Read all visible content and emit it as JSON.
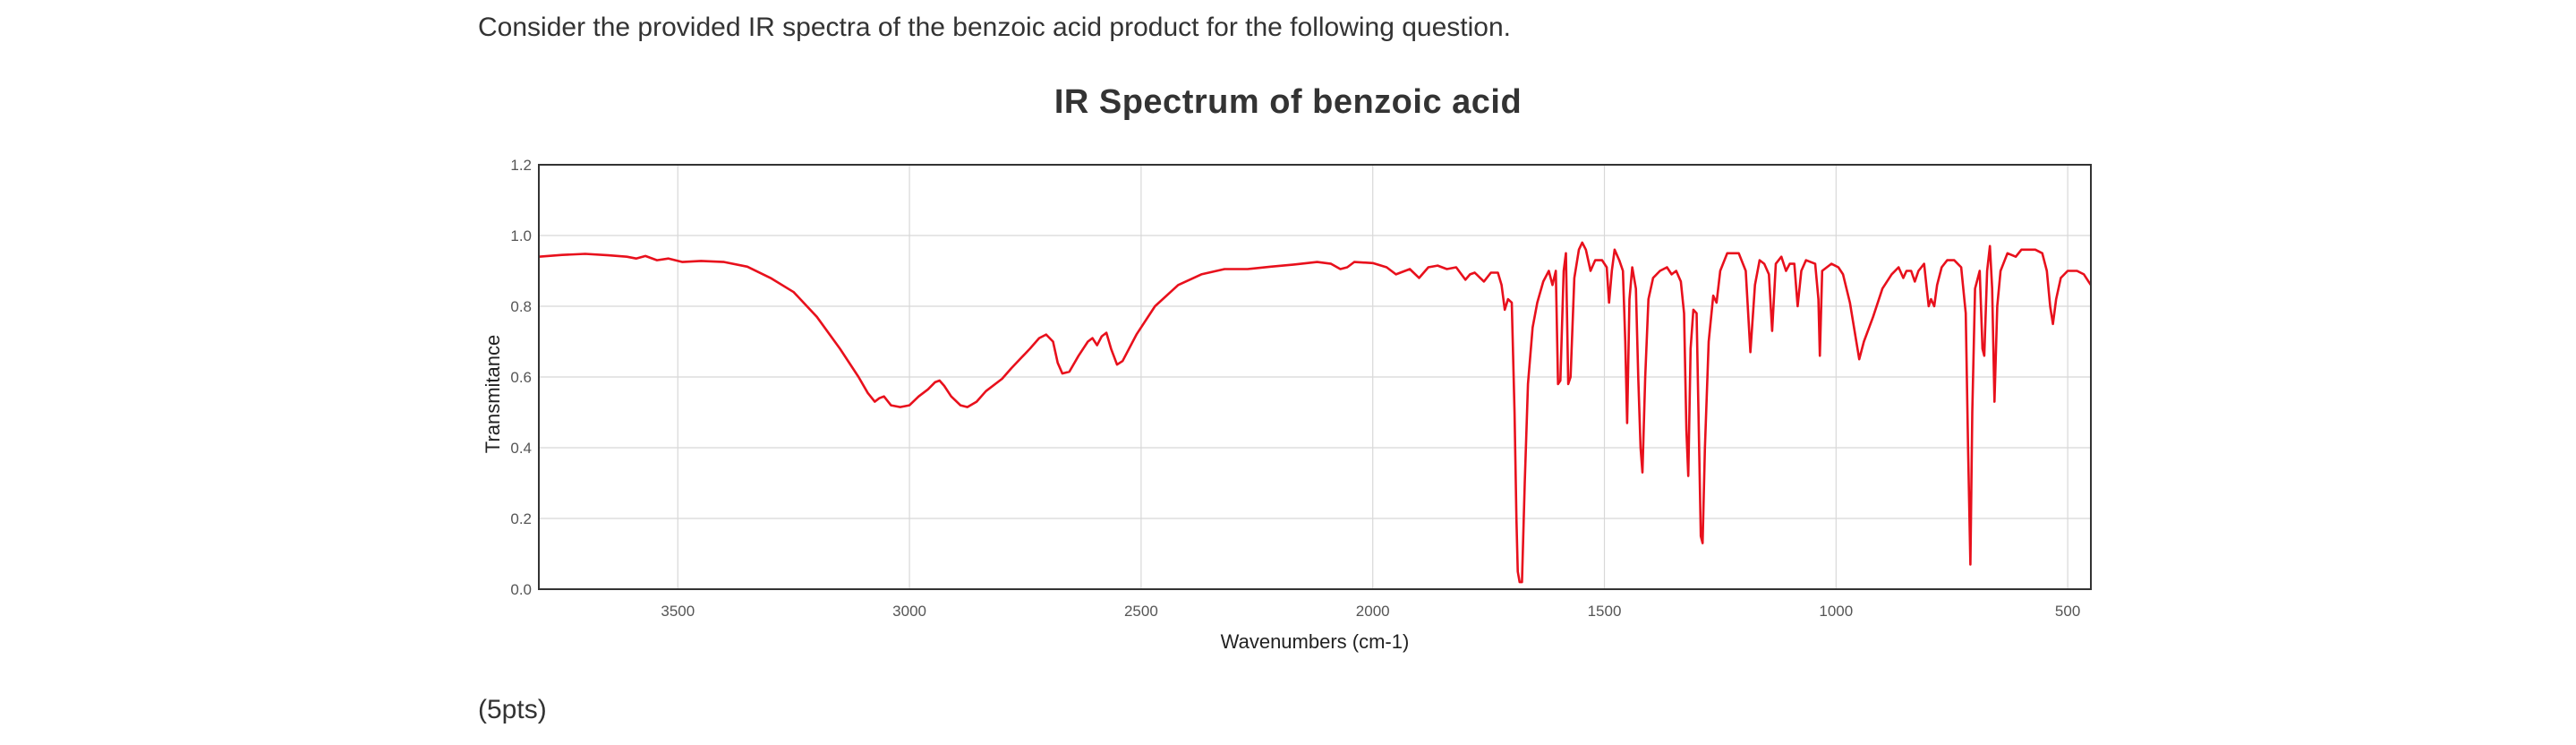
{
  "question": {
    "prompt": "Consider the provided IR spectra of the benzoic acid product for the following question.",
    "points": "(5pts)"
  },
  "colors": {
    "series": "#e8101c",
    "grid": "#d8d8d8",
    "frame": "#333333"
  },
  "chart_data": {
    "type": "line",
    "title": "IR Spectrum of benzoic acid",
    "xlabel": "Wavenumbers (cm-1)",
    "ylabel": "Transmitance",
    "xlim": [
      3800,
      450
    ],
    "x_reversed": true,
    "ylim": [
      0,
      1.2
    ],
    "x_ticks": [
      3500,
      3000,
      2500,
      2000,
      1500,
      1000,
      500
    ],
    "y_ticks": [
      "0.0",
      "0.2",
      "0.4",
      "0.6",
      "0.8",
      "1.0",
      "1.2"
    ],
    "grid": true,
    "series": [
      {
        "color": "#e8101c",
        "points": [
          [
            3800,
            0.94
          ],
          [
            3750,
            0.945
          ],
          [
            3700,
            0.948
          ],
          [
            3650,
            0.944
          ],
          [
            3610,
            0.94
          ],
          [
            3590,
            0.935
          ],
          [
            3570,
            0.942
          ],
          [
            3545,
            0.93
          ],
          [
            3520,
            0.935
          ],
          [
            3490,
            0.925
          ],
          [
            3450,
            0.928
          ],
          [
            3400,
            0.925
          ],
          [
            3350,
            0.912
          ],
          [
            3300,
            0.88
          ],
          [
            3250,
            0.84
          ],
          [
            3200,
            0.77
          ],
          [
            3150,
            0.68
          ],
          [
            3110,
            0.6
          ],
          [
            3090,
            0.555
          ],
          [
            3075,
            0.53
          ],
          [
            3065,
            0.54
          ],
          [
            3055,
            0.545
          ],
          [
            3040,
            0.52
          ],
          [
            3020,
            0.515
          ],
          [
            3000,
            0.52
          ],
          [
            2980,
            0.545
          ],
          [
            2960,
            0.565
          ],
          [
            2945,
            0.585
          ],
          [
            2935,
            0.59
          ],
          [
            2925,
            0.575
          ],
          [
            2910,
            0.545
          ],
          [
            2890,
            0.52
          ],
          [
            2875,
            0.515
          ],
          [
            2855,
            0.53
          ],
          [
            2835,
            0.56
          ],
          [
            2800,
            0.595
          ],
          [
            2780,
            0.625
          ],
          [
            2740,
            0.68
          ],
          [
            2720,
            0.71
          ],
          [
            2705,
            0.72
          ],
          [
            2690,
            0.7
          ],
          [
            2680,
            0.64
          ],
          [
            2670,
            0.61
          ],
          [
            2655,
            0.615
          ],
          [
            2635,
            0.66
          ],
          [
            2615,
            0.7
          ],
          [
            2605,
            0.71
          ],
          [
            2595,
            0.69
          ],
          [
            2585,
            0.715
          ],
          [
            2575,
            0.725
          ],
          [
            2565,
            0.68
          ],
          [
            2552,
            0.635
          ],
          [
            2540,
            0.645
          ],
          [
            2510,
            0.72
          ],
          [
            2470,
            0.8
          ],
          [
            2420,
            0.86
          ],
          [
            2370,
            0.89
          ],
          [
            2320,
            0.905
          ],
          [
            2270,
            0.905
          ],
          [
            2220,
            0.912
          ],
          [
            2170,
            0.918
          ],
          [
            2120,
            0.925
          ],
          [
            2090,
            0.92
          ],
          [
            2070,
            0.905
          ],
          [
            2055,
            0.91
          ],
          [
            2040,
            0.925
          ],
          [
            2000,
            0.922
          ],
          [
            1970,
            0.91
          ],
          [
            1950,
            0.89
          ],
          [
            1920,
            0.905
          ],
          [
            1900,
            0.88
          ],
          [
            1880,
            0.91
          ],
          [
            1860,
            0.915
          ],
          [
            1840,
            0.905
          ],
          [
            1820,
            0.91
          ],
          [
            1800,
            0.875
          ],
          [
            1790,
            0.89
          ],
          [
            1780,
            0.895
          ],
          [
            1760,
            0.87
          ],
          [
            1745,
            0.895
          ],
          [
            1730,
            0.895
          ],
          [
            1722,
            0.86
          ],
          [
            1715,
            0.79
          ],
          [
            1708,
            0.82
          ],
          [
            1700,
            0.81
          ],
          [
            1694,
            0.5
          ],
          [
            1690,
            0.2
          ],
          [
            1687,
            0.05
          ],
          [
            1683,
            0.02
          ],
          [
            1678,
            0.02
          ],
          [
            1672,
            0.3
          ],
          [
            1665,
            0.58
          ],
          [
            1655,
            0.74
          ],
          [
            1645,
            0.81
          ],
          [
            1632,
            0.87
          ],
          [
            1620,
            0.9
          ],
          [
            1612,
            0.86
          ],
          [
            1605,
            0.9
          ],
          [
            1600,
            0.58
          ],
          [
            1595,
            0.59
          ],
          [
            1588,
            0.9
          ],
          [
            1583,
            0.95
          ],
          [
            1578,
            0.58
          ],
          [
            1573,
            0.6
          ],
          [
            1565,
            0.88
          ],
          [
            1555,
            0.96
          ],
          [
            1548,
            0.98
          ],
          [
            1540,
            0.96
          ],
          [
            1530,
            0.9
          ],
          [
            1520,
            0.93
          ],
          [
            1505,
            0.93
          ],
          [
            1495,
            0.91
          ],
          [
            1490,
            0.81
          ],
          [
            1484,
            0.9
          ],
          [
            1478,
            0.96
          ],
          [
            1468,
            0.93
          ],
          [
            1460,
            0.9
          ],
          [
            1455,
            0.7
          ],
          [
            1451,
            0.47
          ],
          [
            1446,
            0.82
          ],
          [
            1440,
            0.91
          ],
          [
            1432,
            0.85
          ],
          [
            1427,
            0.6
          ],
          [
            1422,
            0.4
          ],
          [
            1418,
            0.33
          ],
          [
            1412,
            0.6
          ],
          [
            1405,
            0.82
          ],
          [
            1395,
            0.88
          ],
          [
            1380,
            0.9
          ],
          [
            1365,
            0.91
          ],
          [
            1355,
            0.89
          ],
          [
            1345,
            0.9
          ],
          [
            1335,
            0.87
          ],
          [
            1328,
            0.78
          ],
          [
            1323,
            0.45
          ],
          [
            1319,
            0.32
          ],
          [
            1314,
            0.68
          ],
          [
            1308,
            0.79
          ],
          [
            1301,
            0.78
          ],
          [
            1297,
            0.5
          ],
          [
            1292,
            0.15
          ],
          [
            1288,
            0.13
          ],
          [
            1283,
            0.4
          ],
          [
            1275,
            0.7
          ],
          [
            1265,
            0.83
          ],
          [
            1258,
            0.81
          ],
          [
            1250,
            0.9
          ],
          [
            1235,
            0.95
          ],
          [
            1210,
            0.95
          ],
          [
            1195,
            0.9
          ],
          [
            1185,
            0.67
          ],
          [
            1175,
            0.86
          ],
          [
            1165,
            0.93
          ],
          [
            1155,
            0.92
          ],
          [
            1145,
            0.89
          ],
          [
            1138,
            0.73
          ],
          [
            1130,
            0.92
          ],
          [
            1118,
            0.94
          ],
          [
            1108,
            0.9
          ],
          [
            1100,
            0.92
          ],
          [
            1090,
            0.92
          ],
          [
            1083,
            0.8
          ],
          [
            1075,
            0.9
          ],
          [
            1065,
            0.93
          ],
          [
            1045,
            0.92
          ],
          [
            1038,
            0.82
          ],
          [
            1035,
            0.66
          ],
          [
            1030,
            0.9
          ],
          [
            1020,
            0.91
          ],
          [
            1010,
            0.92
          ],
          [
            995,
            0.91
          ],
          [
            985,
            0.89
          ],
          [
            970,
            0.81
          ],
          [
            960,
            0.73
          ],
          [
            950,
            0.65
          ],
          [
            940,
            0.7
          ],
          [
            920,
            0.77
          ],
          [
            900,
            0.85
          ],
          [
            880,
            0.89
          ],
          [
            865,
            0.91
          ],
          [
            855,
            0.88
          ],
          [
            848,
            0.9
          ],
          [
            838,
            0.9
          ],
          [
            830,
            0.87
          ],
          [
            822,
            0.9
          ],
          [
            810,
            0.92
          ],
          [
            805,
            0.86
          ],
          [
            800,
            0.8
          ],
          [
            795,
            0.82
          ],
          [
            788,
            0.8
          ],
          [
            782,
            0.86
          ],
          [
            772,
            0.91
          ],
          [
            760,
            0.93
          ],
          [
            745,
            0.93
          ],
          [
            730,
            0.91
          ],
          [
            720,
            0.78
          ],
          [
            715,
            0.4
          ],
          [
            710,
            0.07
          ],
          [
            706,
            0.5
          ],
          [
            700,
            0.85
          ],
          [
            690,
            0.9
          ],
          [
            684,
            0.68
          ],
          [
            680,
            0.66
          ],
          [
            674,
            0.9
          ],
          [
            668,
            0.97
          ],
          [
            663,
            0.85
          ],
          [
            658,
            0.53
          ],
          [
            652,
            0.8
          ],
          [
            645,
            0.9
          ],
          [
            630,
            0.95
          ],
          [
            612,
            0.94
          ],
          [
            600,
            0.96
          ],
          [
            570,
            0.96
          ],
          [
            555,
            0.95
          ],
          [
            545,
            0.9
          ],
          [
            538,
            0.8
          ],
          [
            532,
            0.75
          ],
          [
            525,
            0.82
          ],
          [
            515,
            0.88
          ],
          [
            500,
            0.9
          ],
          [
            480,
            0.9
          ],
          [
            465,
            0.89
          ],
          [
            455,
            0.87
          ],
          [
            450,
            0.86
          ]
        ]
      }
    ]
  }
}
